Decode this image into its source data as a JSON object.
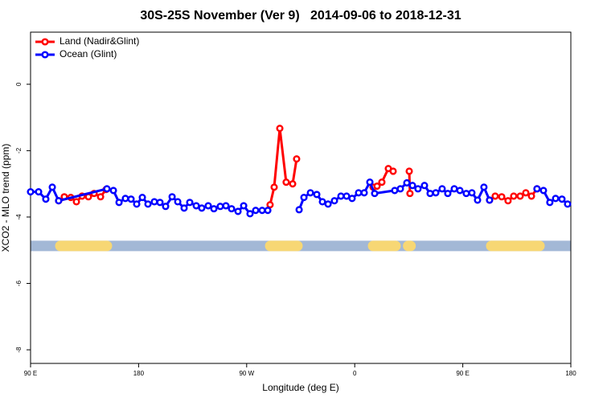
{
  "chart_data": {
    "type": "line",
    "title": "30S-25S November (Ver 9)   2014-09-06 to 2018-12-31",
    "x_label": "Longitude (deg E)",
    "y_label": "XCO2 - MLO trend (ppm)",
    "xlim": [
      90,
      540
    ],
    "ylim": [
      -8.41,
      1.57
    ],
    "xticks": [
      {
        "value": 90,
        "label": "90 E"
      },
      180,
      {
        "value": 270,
        "label": "90 W"
      },
      {
        "value": 360,
        "label": "0"
      },
      {
        "value": 450,
        "label": "90 E"
      },
      {
        "value": 540,
        "label": "180"
      }
    ],
    "yticks": [
      0,
      -2,
      -4,
      -6,
      -8
    ],
    "legend": "top-left",
    "band": {
      "y": -4.87,
      "ocean_color": "#a3b8d6",
      "land_color": "#f7d774",
      "land_ranges": [
        [
          114.8,
          153.6
        ],
        [
          289.6,
          312.3
        ],
        [
          375.3,
          394.0
        ],
        [
          404.5,
          406.5
        ],
        [
          473.7,
          513.9
        ]
      ]
    },
    "series": [
      {
        "name": "Land (Nadir&Glint)",
        "color": "#ff0000",
        "x": [
          113.4,
          118.1,
          123.5,
          128.2,
          132.9,
          138.2,
          142.9,
          148.3,
          152.9,
          null,
          289.5,
          292.9,
          297.6,
          302.9,
          308.3,
          311.6,
          null,
          375.3,
          378.6,
          382.6,
          388.0,
          392.0,
          null,
          405.4,
          406.0,
          null,
          472.3,
          477.0,
          482.4,
          487.7,
          492.4,
          497.8,
          502.5,
          507.2,
          511.8
        ],
        "values": [
          -3.51,
          -3.39,
          -3.41,
          -3.54,
          -3.37,
          -3.39,
          -3.29,
          -3.39,
          -3.17,
          null,
          -3.63,
          -3.1,
          -1.33,
          -2.95,
          -3.0,
          -2.25,
          null,
          -3.1,
          -3.07,
          -2.95,
          -2.54,
          -2.62,
          null,
          -2.62,
          -3.29,
          null,
          -3.49,
          -3.37,
          -3.39,
          -3.51,
          -3.37,
          -3.37,
          -3.27,
          -3.37,
          -3.15
        ]
      },
      {
        "name": "Ocean (Glint)",
        "color": "#0000ff",
        "x": [
          90.0,
          96.7,
          102.7,
          108.1,
          113.4,
          153.6,
          159.0,
          163.7,
          169.0,
          173.7,
          178.4,
          183.1,
          187.8,
          193.1,
          197.8,
          202.5,
          207.9,
          212.6,
          217.9,
          222.6,
          228.0,
          232.6,
          238.0,
          242.7,
          248.0,
          252.7,
          257.4,
          262.8,
          267.5,
          272.8,
          277.5,
          282.9,
          287.6,
          null,
          313.7,
          317.7,
          323.1,
          328.4,
          333.1,
          337.8,
          343.1,
          348.5,
          353.2,
          357.8,
          363.2,
          367.9,
          372.6,
          376.6,
          393.3,
          398.0,
          403.4,
          408.1,
          412.7,
          418.1,
          422.8,
          427.5,
          432.8,
          437.5,
          442.9,
          447.6,
          452.9,
          457.6,
          462.3,
          467.6,
          472.3,
          null,
          511.8,
          517.2,
          522.5,
          527.3,
          532.6,
          537.3
        ],
        "values": [
          -3.24,
          -3.24,
          -3.46,
          -3.1,
          -3.51,
          -3.15,
          -3.2,
          -3.56,
          -3.44,
          -3.46,
          -3.61,
          -3.41,
          -3.61,
          -3.54,
          -3.56,
          -3.68,
          -3.39,
          -3.54,
          -3.73,
          -3.56,
          -3.66,
          -3.73,
          -3.66,
          -3.75,
          -3.68,
          -3.66,
          -3.75,
          -3.83,
          -3.66,
          -3.9,
          -3.8,
          -3.8,
          -3.8,
          null,
          -3.78,
          -3.41,
          -3.27,
          -3.32,
          -3.54,
          -3.61,
          -3.51,
          -3.37,
          -3.37,
          -3.44,
          -3.27,
          -3.27,
          -2.95,
          -3.29,
          -3.2,
          -3.15,
          -2.97,
          -3.05,
          -3.15,
          -3.05,
          -3.29,
          -3.27,
          -3.15,
          -3.29,
          -3.15,
          -3.2,
          -3.29,
          -3.27,
          -3.49,
          -3.1,
          -3.49,
          null,
          -3.15,
          -3.2,
          -3.56,
          -3.44,
          -3.46,
          -3.61
        ]
      }
    ]
  }
}
